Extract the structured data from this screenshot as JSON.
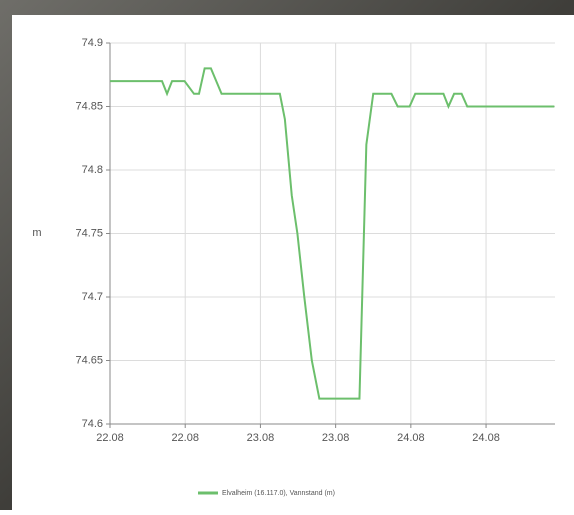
{
  "chart_data": {
    "type": "line",
    "y_label": "m",
    "x": [
      0,
      8.3,
      9.1,
      9.9,
      11.9,
      13.4,
      14.2,
      15.1,
      16.1,
      17.8,
      27.1,
      27.9,
      29,
      29.9,
      31,
      32.2,
      33.4,
      39.8,
      40.9,
      42,
      44.9,
      45.9,
      47.8,
      48.7,
      53.2,
      54,
      54.9,
      56.1,
      57,
      70.9
    ],
    "series": [
      {
        "name": "Elvalheim (16.117.0), Vannstand (m)",
        "color": "#6cbf6c",
        "values": [
          74.87,
          74.87,
          74.86,
          74.87,
          74.87,
          74.86,
          74.86,
          74.88,
          74.88,
          74.86,
          74.86,
          74.84,
          74.78,
          74.75,
          74.7,
          74.65,
          74.62,
          74.62,
          74.82,
          74.86,
          74.86,
          74.85,
          74.85,
          74.86,
          74.86,
          74.85,
          74.86,
          74.86,
          74.85,
          74.85
        ]
      }
    ],
    "xlim": [
      0,
      71
    ],
    "xticks": [
      {
        "value": 0,
        "label": "22.08"
      },
      {
        "value": 12,
        "label": "22.08"
      },
      {
        "value": 24,
        "label": "23.08"
      },
      {
        "value": 36,
        "label": "23.08"
      },
      {
        "value": 48,
        "label": "24.08"
      },
      {
        "value": 60,
        "label": "24.08"
      }
    ],
    "ylim": [
      74.6,
      74.9
    ],
    "yticks": [
      74.6,
      74.65,
      74.7,
      74.75,
      74.8,
      74.85,
      74.9
    ],
    "grid": true
  }
}
